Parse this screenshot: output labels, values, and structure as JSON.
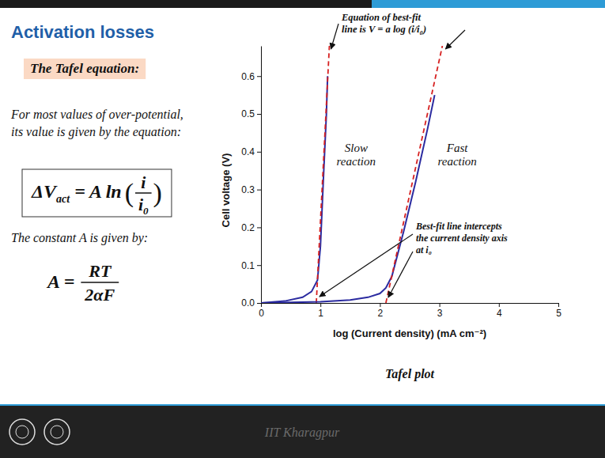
{
  "slide": {
    "title": "Activation losses",
    "subheading": "The Tafel equation:",
    "intro": [
      "For most values of over-potential,",
      "its value is given by the equation:"
    ],
    "equation_1": {
      "lhs": "ΔV",
      "lhs_sub": "act",
      "middle": "= A ln",
      "open": "(",
      "numerator": "i",
      "denominator": "i",
      "denominator_sub": "0",
      "close": ")"
    },
    "constant_text": "The constant A is given by:",
    "equation_2": {
      "lhs": "A =",
      "numerator": "RT",
      "denominator": "2αF"
    },
    "footer": "IIT Kharagpur"
  },
  "chart_data": {
    "type": "line",
    "x_label": "log (Current density) (mA cm⁻²)",
    "y_label": "Cell voltage (V)",
    "xlim": [
      0,
      5
    ],
    "xticks": [
      0,
      1,
      2,
      3,
      4,
      5
    ],
    "ylim": [
      0,
      0.68
    ],
    "yticks": [
      {
        "value": 0,
        "label": "0.0"
      },
      0.1,
      0.2,
      0.3,
      0.4,
      0.5,
      0.6
    ],
    "grid": false,
    "series": [
      {
        "color": "#2b2ba0",
        "line_style": "solid",
        "x": [
          0,
          0.4,
          0.7,
          0.85,
          0.95,
          1.0,
          1.05,
          1.1,
          1.12
        ],
        "values": [
          0,
          0.005,
          0.015,
          0.03,
          0.06,
          0.15,
          0.33,
          0.5,
          0.6
        ]
      },
      {
        "color": "#d62020",
        "line_style": "dashed",
        "x": [
          0.93,
          1.15
        ],
        "values": [
          0,
          0.68
        ]
      },
      {
        "color": "#2b2ba0",
        "line_style": "solid",
        "x": [
          0,
          1,
          1.5,
          1.8,
          2.0,
          2.1,
          2.2,
          2.4,
          2.6,
          2.8,
          2.92
        ],
        "values": [
          0,
          0.003,
          0.008,
          0.015,
          0.025,
          0.04,
          0.07,
          0.19,
          0.32,
          0.46,
          0.55
        ]
      },
      {
        "color": "#d62020",
        "line_style": "dashed",
        "x": [
          2.1,
          3.05
        ],
        "values": [
          0,
          0.68
        ]
      }
    ],
    "annotations": [
      {
        "text": [
          "Equation of best-fit",
          "line is V = a log (i/i₀)"
        ]
      },
      {
        "text": [
          "Slow",
          "reaction"
        ]
      },
      {
        "text": [
          "Fast",
          "reaction"
        ]
      },
      {
        "text": [
          "Best-fit line intercepts",
          "the current density axis",
          "at i₀"
        ]
      },
      {
        "text": [
          "Tafel plot"
        ]
      }
    ]
  }
}
